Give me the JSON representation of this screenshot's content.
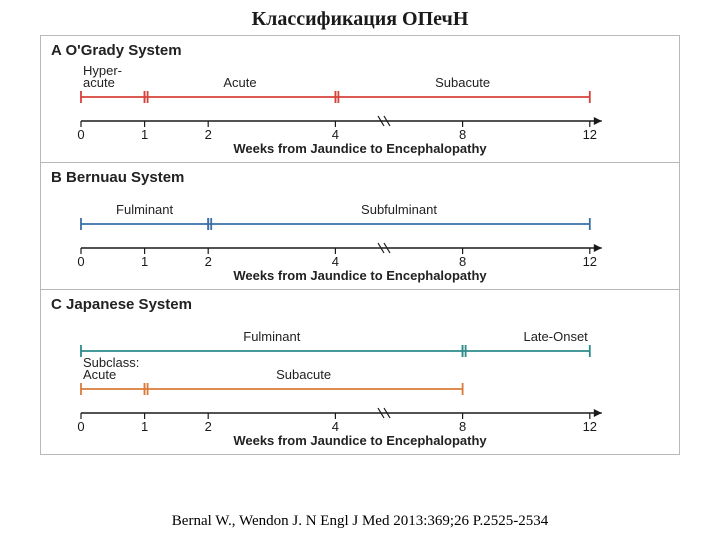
{
  "title": "Классификация ОПечН",
  "citation": "Bernal W., Wendon J. N Engl J Med 2013:369;26 P.2525-2534",
  "axis_label": "Weeks from Jaundice to Encephalopathy",
  "axis": {
    "ticks": [
      0,
      1,
      2,
      4,
      8,
      12
    ],
    "break_between": [
      4,
      8
    ],
    "color": "#1a1a1a",
    "tick_fontsize": 13
  },
  "colors": {
    "panel_border": "#b8b8b8",
    "text": "#1a1a1a"
  },
  "panels": [
    {
      "id": "A",
      "name": "O'Grady System",
      "rows": [
        {
          "segments": [
            {
              "label": "Hyper-\nacute",
              "start": 0,
              "end": 1,
              "color": "#d6423a",
              "label_pos": "above-left"
            },
            {
              "label": "Acute",
              "start": 1,
              "end": 4,
              "color": "#d6423a",
              "label_pos": "above-center"
            },
            {
              "label": "Subacute",
              "start": 4,
              "end": 12,
              "color": "#d6423a",
              "label_pos": "above-center"
            }
          ]
        }
      ]
    },
    {
      "id": "B",
      "name": "Bernuau System",
      "rows": [
        {
          "segments": [
            {
              "label": "Fulminant",
              "start": 0,
              "end": 2,
              "color": "#3a6ea8",
              "label_pos": "above-center"
            },
            {
              "label": "Subfulminant",
              "start": 2,
              "end": 12,
              "color": "#3a6ea8",
              "label_pos": "above-center"
            }
          ]
        }
      ]
    },
    {
      "id": "C",
      "name": "Japanese System",
      "rows": [
        {
          "segments": [
            {
              "label": "Fulminant",
              "start": 0,
              "end": 8,
              "color": "#2d8a8a",
              "label_pos": "above-center"
            },
            {
              "label": "Late-Onset",
              "start": 8,
              "end": 12,
              "color": "#2d8a8a",
              "label_pos": "above-right"
            }
          ]
        },
        {
          "segments": [
            {
              "label": "Subclass:\nAcute",
              "start": 0,
              "end": 1,
              "color": "#d97b3a",
              "label_pos": "above-left"
            },
            {
              "label": "Subacute",
              "start": 1,
              "end": 8,
              "color": "#d97b3a",
              "label_pos": "above-center"
            }
          ]
        }
      ]
    }
  ]
}
